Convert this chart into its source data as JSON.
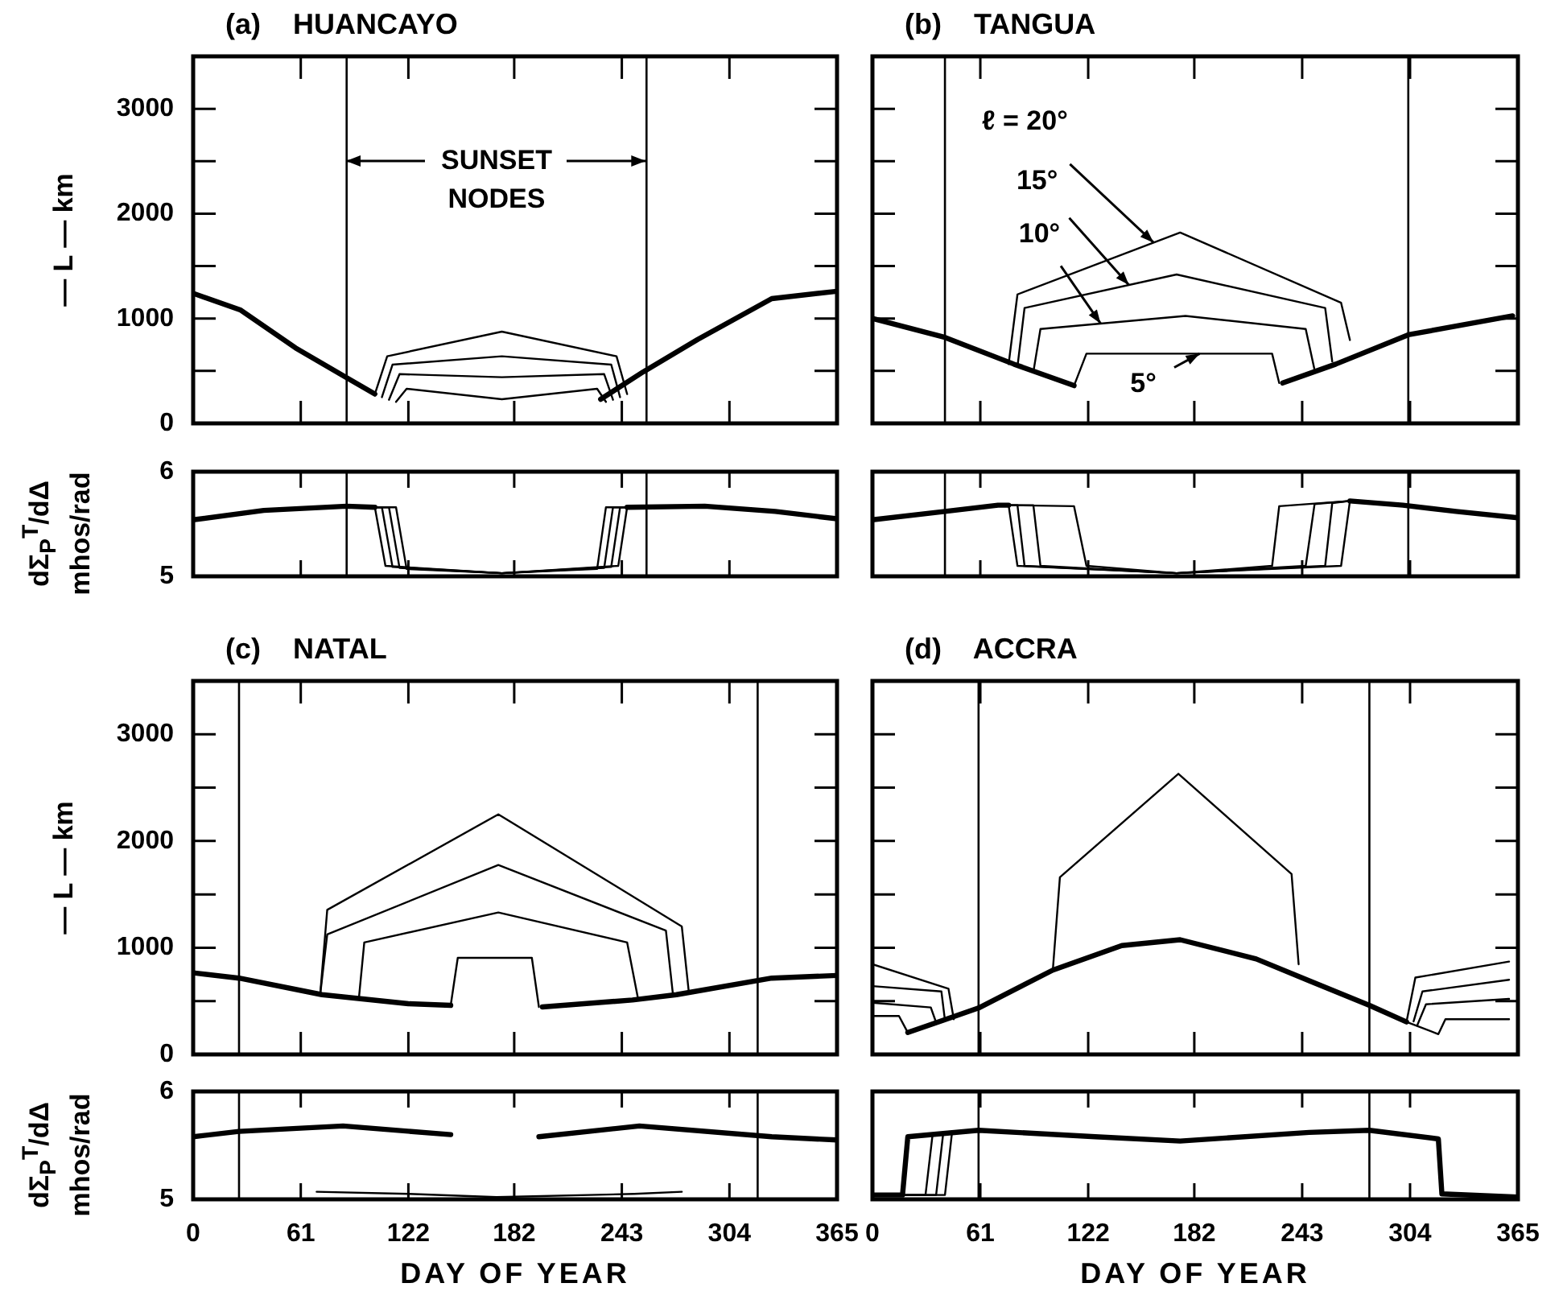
{
  "chart_data": [
    {
      "type": "line",
      "title": "(a)    HUANCAYO",
      "ylabel": "— L — km",
      "tick_labels": "y",
      "xlim": [
        0,
        365
      ],
      "xticks": [
        0,
        61,
        122,
        182,
        243,
        304,
        365
      ],
      "ylim": [
        0,
        3500
      ],
      "yticks": [
        0,
        {
          "value": 500,
          "label": null
        },
        1000,
        {
          "value": 1500,
          "label": null
        },
        2000,
        {
          "value": 2500,
          "label": null
        },
        3000
      ],
      "ref_lines": [
        {
          "axis": "x",
          "value": 87
        },
        {
          "axis": "x",
          "value": 257
        }
      ],
      "annotations": [
        {
          "text": "SUNSET NODES",
          "x": 257,
          "y": 2500
        }
      ],
      "series": [
        {
          "color": "#000000",
          "x": [
            0,
            27,
            58,
            87,
            103,
            175,
            231,
            255,
            286,
            328,
            365
          ],
          "values": [
            1240,
            1080,
            720,
            435,
            280,
            null,
            230,
            490,
            800,
            1190,
            1260
          ]
        },
        {
          "color": "#000000",
          "x": [
            103,
            110,
            175,
            240,
            246
          ],
          "values": [
            280,
            640,
            875,
            640,
            280
          ]
        },
        {
          "color": "#000000",
          "x": [
            107,
            113,
            175,
            237,
            242
          ],
          "values": [
            250,
            560,
            640,
            560,
            250
          ]
        },
        {
          "color": "#000000",
          "x": [
            111,
            117,
            175,
            233,
            238
          ],
          "values": [
            225,
            470,
            440,
            470,
            225
          ]
        },
        {
          "color": "#000000",
          "x": [
            115,
            121,
            175,
            229,
            234
          ],
          "values": [
            205,
            330,
            230,
            330,
            205
          ]
        }
      ]
    },
    {
      "type": "line",
      "ylabel": "dΣ$_{P}$$^{T}$/dΔ\nmhos/rad",
      "tick_labels": "y",
      "xlim": [
        0,
        365
      ],
      "xticks": [
        0,
        61,
        122,
        182,
        243,
        304,
        365
      ],
      "ylim": [
        5,
        6
      ],
      "yticks": [
        5,
        6
      ],
      "ref_lines": [
        {
          "axis": "x",
          "value": 87
        },
        {
          "axis": "x",
          "value": 257
        }
      ],
      "series": [
        {
          "color": "#000000",
          "x": [
            0,
            40,
            87,
            103,
            175,
            246,
            290,
            330,
            365
          ],
          "values": [
            5.54,
            5.63,
            5.67,
            5.66,
            null,
            5.66,
            5.67,
            5.62,
            5.55
          ]
        },
        {
          "color": "#000000",
          "x": [
            103,
            109,
            175,
            241,
            246
          ],
          "values": [
            5.66,
            5.1,
            5.03,
            5.1,
            5.66
          ]
        },
        {
          "color": "#000000",
          "x": [
            103,
            107,
            113,
            175,
            237,
            242,
            246
          ],
          "values": [
            5.66,
            5.66,
            5.09,
            5.03,
            5.09,
            5.66,
            5.66
          ]
        },
        {
          "color": "#000000",
          "x": [
            103,
            111,
            117,
            175,
            233,
            238,
            246
          ],
          "values": [
            5.66,
            5.66,
            5.08,
            5.03,
            5.08,
            5.66,
            5.66
          ]
        },
        {
          "color": "#000000",
          "x": [
            103,
            115,
            121,
            175,
            229,
            234,
            246
          ],
          "values": [
            5.66,
            5.66,
            5.07,
            5.03,
            5.07,
            5.66,
            5.66
          ]
        }
      ]
    },
    {
      "type": "line",
      "title": "(b)    TANGUA",
      "tick_labels": false,
      "xlim": [
        0,
        365
      ],
      "xticks": [
        0,
        61,
        122,
        182,
        243,
        304,
        365
      ],
      "ylim": [
        0,
        3500
      ],
      "yticks": [
        0,
        500,
        1000,
        1500,
        2000,
        2500,
        3000
      ],
      "ref_lines": [
        {
          "axis": "x",
          "value": 41
        },
        {
          "axis": "x",
          "value": 303
        }
      ],
      "annotations": [
        {
          "text": "ℓ = 20°",
          "x": 159,
          "y": 1724
        },
        {
          "text": "15°",
          "x": 145,
          "y": 1320
        },
        {
          "text": "10°",
          "x": 129,
          "y": 952
        },
        {
          "text": "5°",
          "x": 185,
          "y": 665
        }
      ],
      "series": [
        {
          "color": "#000000",
          "x": [
            0,
            41,
            80,
            114,
            172,
            232,
            262,
            303,
            362
          ],
          "values": [
            1000,
            820,
            565,
            360,
            null,
            385,
            565,
            845,
            1025
          ]
        },
        {
          "color": "#000000",
          "x": [
            77,
            82,
            174,
            265,
            270
          ],
          "values": [
            565,
            1230,
            1820,
            1150,
            795
          ]
        },
        {
          "color": "#000000",
          "x": [
            82,
            86,
            172,
            256,
            260
          ],
          "values": [
            540,
            1100,
            1420,
            1100,
            590
          ]
        },
        {
          "color": "#000000",
          "x": [
            91,
            95,
            177,
            245,
            250
          ],
          "values": [
            490,
            900,
            1025,
            900,
            510
          ]
        },
        {
          "color": "#000000",
          "x": [
            114,
            121,
            172,
            226,
            230
          ],
          "values": [
            360,
            665,
            665,
            665,
            385
          ]
        }
      ]
    },
    {
      "type": "line",
      "tick_labels": false,
      "xlim": [
        0,
        365
      ],
      "xticks": [
        0,
        61,
        122,
        182,
        243,
        304,
        365
      ],
      "ylim": [
        5,
        6
      ],
      "yticks": [
        5,
        6
      ],
      "ref_lines": [
        {
          "axis": "x",
          "value": 41
        },
        {
          "axis": "x",
          "value": 303
        }
      ],
      "series": [
        {
          "color": "#000000",
          "x": [
            0,
            41,
            71,
            77,
            172,
            270,
            300,
            330,
            365
          ],
          "values": [
            5.54,
            5.62,
            5.68,
            5.68,
            null,
            5.72,
            5.68,
            5.62,
            5.56
          ]
        },
        {
          "color": "#000000",
          "x": [
            77,
            82,
            172,
            265,
            270
          ],
          "values": [
            5.68,
            5.1,
            5.03,
            5.1,
            5.72
          ]
        },
        {
          "color": "#000000",
          "x": [
            77,
            82,
            86,
            172,
            256,
            260,
            270
          ],
          "values": [
            5.68,
            5.68,
            5.1,
            5.03,
            5.1,
            5.7,
            5.72
          ]
        },
        {
          "color": "#000000",
          "x": [
            77,
            91,
            95,
            172,
            245,
            250,
            270
          ],
          "values": [
            5.68,
            5.68,
            5.1,
            5.03,
            5.1,
            5.69,
            5.72
          ]
        },
        {
          "color": "#000000",
          "x": [
            77,
            114,
            121,
            172,
            226,
            230,
            270
          ],
          "values": [
            5.68,
            5.67,
            5.1,
            5.03,
            5.1,
            5.67,
            5.72
          ]
        }
      ]
    },
    {
      "type": "line",
      "title": "(c)    NATAL",
      "ylabel": "— L — km",
      "tick_labels": "y",
      "xlim": [
        0,
        365
      ],
      "xticks": [
        0,
        61,
        122,
        182,
        243,
        304,
        365
      ],
      "ylim": [
        0,
        3500
      ],
      "yticks": [
        0,
        {
          "value": 500,
          "label": null
        },
        1000,
        {
          "value": 1500,
          "label": null
        },
        2000,
        {
          "value": 2500,
          "label": null
        },
        3000
      ],
      "ref_lines": [
        {
          "axis": "x",
          "value": 26
        },
        {
          "axis": "x",
          "value": 320
        }
      ],
      "series": [
        {
          "color": "#000000",
          "x": [
            0,
            26,
            73,
            122,
            146,
            172,
            198,
            249,
            274,
            328,
            365
          ],
          "values": [
            765,
            715,
            560,
            475,
            460,
            null,
            445,
            510,
            560,
            715,
            740
          ]
        },
        {
          "color": "#000000",
          "x": [
            72,
            76,
            173,
            277,
            281
          ],
          "values": [
            560,
            1355,
            2250,
            1200,
            580
          ]
        },
        {
          "color": "#000000",
          "x": [
            72,
            76,
            173,
            268,
            272
          ],
          "values": [
            560,
            1125,
            1775,
            1160,
            560
          ]
        },
        {
          "color": "#000000",
          "x": [
            94,
            97,
            173,
            246,
            252
          ],
          "values": [
            535,
            1050,
            1330,
            1050,
            540
          ]
        },
        {
          "color": "#000000",
          "x": [
            146,
            150,
            172,
            192,
            196
          ],
          "values": [
            460,
            905,
            905,
            905,
            445
          ]
        }
      ]
    },
    {
      "type": "line",
      "ylabel": "dΣ$_{P}$$^{T}$/dΔ\nmhos/rad",
      "xlabel": "DAY OF YEAR",
      "xlim": [
        0,
        365
      ],
      "xticks": [
        0,
        61,
        122,
        182,
        243,
        304,
        365
      ],
      "ylim": [
        5,
        6
      ],
      "yticks": [
        5,
        6
      ],
      "ref_lines": [
        {
          "axis": "x",
          "value": 26
        },
        {
          "axis": "x",
          "value": 320
        }
      ],
      "series": [
        {
          "color": "#000000",
          "x": [
            0,
            26,
            85,
            146,
            172,
            196,
            253,
            328,
            365
          ],
          "values": [
            5.58,
            5.63,
            5.68,
            5.6,
            null,
            5.58,
            5.68,
            5.58,
            5.55
          ]
        },
        {
          "color": "#000000",
          "x": [
            70,
            122,
            172,
            250,
            277
          ],
          "values": [
            5.07,
            5.05,
            5.02,
            5.05,
            5.07
          ]
        }
      ]
    },
    {
      "type": "line",
      "title": "(d)    ACCRA",
      "tick_labels": false,
      "xlim": [
        0,
        365
      ],
      "xticks": [
        0,
        61,
        122,
        182,
        243,
        304,
        365
      ],
      "ylim": [
        0,
        3500
      ],
      "yticks": [
        0,
        500,
        1000,
        1500,
        2000,
        2500,
        3000
      ],
      "ref_lines": [
        {
          "axis": "x",
          "value": 60
        },
        {
          "axis": "x",
          "value": 281
        }
      ],
      "series": [
        {
          "color": "#000000",
          "x": [
            20,
            60,
            102,
            141,
            174,
            217,
            247,
            281,
            302
          ],
          "values": [
            205,
            435,
            790,
            1020,
            1075,
            895,
            690,
            460,
            305
          ]
        },
        {
          "color": "#000000",
          "x": [
            0,
            43,
            46,
            80,
            102,
            106,
            173,
            237,
            241,
            280,
            302,
            307,
            360
          ],
          "values": [
            845,
            615,
            330,
            null,
            790,
            1660,
            2630,
            1690,
            845,
            null,
            305,
            720,
            870
          ]
        },
        {
          "color": "#000000",
          "x": [
            0,
            39,
            41,
            200,
            306,
            311,
            360
          ],
          "values": [
            640,
            590,
            320,
            null,
            310,
            590,
            700
          ]
        },
        {
          "color": "#000000",
          "x": [
            0,
            33,
            36,
            200,
            308,
            313,
            360
          ],
          "values": [
            485,
            440,
            300,
            null,
            270,
            470,
            520
          ]
        },
        {
          "color": "#000000",
          "x": [
            0,
            15,
            20,
            200,
            302,
            320,
            324,
            360
          ],
          "values": [
            360,
            360,
            205,
            null,
            305,
            190,
            330,
            330
          ]
        }
      ]
    },
    {
      "type": "line",
      "xlabel": "DAY OF YEAR",
      "tick_labels": "x",
      "xlim": [
        0,
        365
      ],
      "xticks": [
        0,
        61,
        122,
        182,
        243,
        304,
        365
      ],
      "ylim": [
        5,
        6
      ],
      "yticks": [
        5,
        6
      ],
      "ref_lines": [
        {
          "axis": "x",
          "value": 60
        },
        {
          "axis": "x",
          "value": 281
        }
      ],
      "series": [
        {
          "color": "#000000",
          "x": [
            0,
            17,
            20,
            60,
            126,
            174,
            247,
            281,
            320,
            322,
            365
          ],
          "values": [
            5.04,
            5.04,
            5.58,
            5.64,
            5.58,
            5.54,
            5.62,
            5.64,
            5.56,
            5.05,
            5.02
          ]
        },
        {
          "color": "#000000",
          "x": [
            0,
            30,
            34,
            60
          ],
          "values": [
            5.04,
            5.04,
            5.6,
            5.64
          ]
        },
        {
          "color": "#000000",
          "x": [
            0,
            36,
            40,
            60
          ],
          "values": [
            5.04,
            5.04,
            5.61,
            5.64
          ]
        },
        {
          "color": "#000000",
          "x": [
            0,
            41,
            45,
            60
          ],
          "values": [
            5.04,
            5.04,
            5.62,
            5.64
          ]
        }
      ]
    }
  ]
}
